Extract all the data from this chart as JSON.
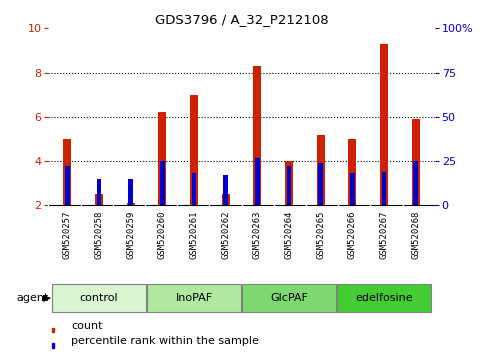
{
  "title": "GDS3796 / A_32_P212108",
  "samples": [
    "GSM520257",
    "GSM520258",
    "GSM520259",
    "GSM520260",
    "GSM520261",
    "GSM520262",
    "GSM520263",
    "GSM520264",
    "GSM520265",
    "GSM520266",
    "GSM520267",
    "GSM520268"
  ],
  "count_values": [
    5.0,
    2.5,
    2.1,
    6.2,
    7.0,
    2.5,
    8.3,
    4.0,
    5.2,
    5.0,
    9.3,
    5.9
  ],
  "percentile_values": [
    22,
    15,
    15,
    25,
    18,
    17,
    27,
    22,
    24,
    18,
    19,
    25
  ],
  "groups": [
    {
      "label": "control",
      "start": 0,
      "end": 3,
      "color": "#d8f5d0"
    },
    {
      "label": "InoPAF",
      "start": 3,
      "end": 6,
      "color": "#b0e8a0"
    },
    {
      "label": "GlcPAF",
      "start": 6,
      "end": 9,
      "color": "#7dd870"
    },
    {
      "label": "edelfosine",
      "start": 9,
      "end": 12,
      "color": "#44cc33"
    }
  ],
  "ylim_left": [
    2,
    10
  ],
  "ylim_right": [
    0,
    100
  ],
  "yticks_left": [
    2,
    4,
    6,
    8,
    10
  ],
  "yticks_right": [
    0,
    25,
    50,
    75,
    100
  ],
  "bar_color_red": "#cc2200",
  "bar_color_blue": "#0000cc",
  "bar_width": 0.25,
  "blue_bar_width": 0.15,
  "bg_plot": "#ffffff",
  "bg_xtick": "#d0d0d0",
  "left_axis_color": "#cc2200",
  "right_axis_color": "#0000cc",
  "legend_items": [
    "count",
    "percentile rank within the sample"
  ],
  "dotted_lines": [
    4,
    6,
    8
  ]
}
